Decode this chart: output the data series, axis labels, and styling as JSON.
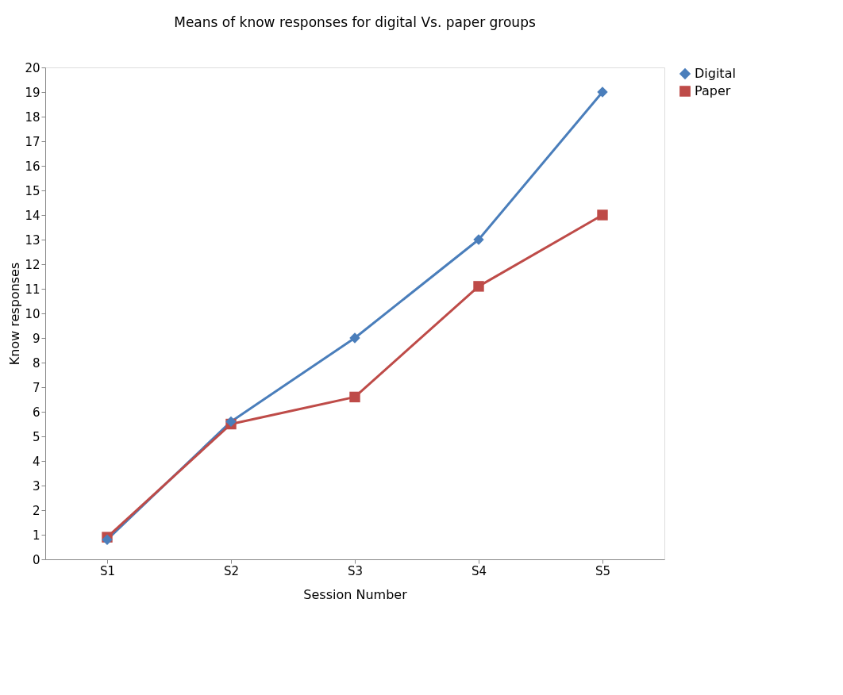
{
  "chart_data": {
    "type": "line",
    "title": "Means of know responses for digital Vs. paper groups",
    "xlabel": "Session Number",
    "ylabel": "Know responses",
    "categories": [
      "S1",
      "S2",
      "S3",
      "S4",
      "S5"
    ],
    "series": [
      {
        "name": "Digital",
        "color": "#4a7ebb",
        "marker": "diamond",
        "values": [
          0.8,
          5.6,
          9,
          13,
          19
        ]
      },
      {
        "name": "Paper",
        "color": "#be4b48",
        "marker": "square",
        "values": [
          0.9,
          5.5,
          6.6,
          11.1,
          14
        ]
      }
    ],
    "ylim": [
      0,
      20
    ],
    "yticks": [
      0,
      1,
      2,
      3,
      4,
      5,
      6,
      7,
      8,
      9,
      10,
      11,
      12,
      13,
      14,
      15,
      16,
      17,
      18,
      19,
      20
    ],
    "grid": false,
    "legend": "right",
    "line_style": "solid"
  }
}
